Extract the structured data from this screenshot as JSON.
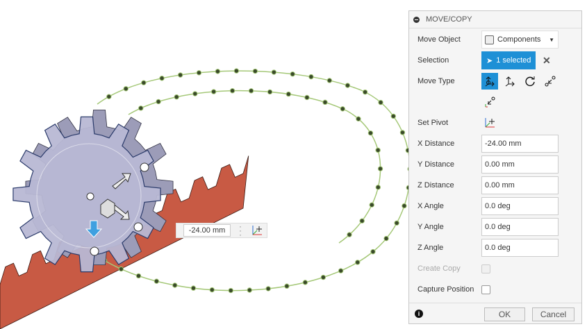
{
  "viewport": {
    "distance_input": "-24.00 mm",
    "colors": {
      "rack": "#c0503c",
      "gear": "#b3b3cf",
      "path": "#a5c878"
    }
  },
  "panel": {
    "title": "MOVE/COPY",
    "move_object": {
      "label": "Move Object",
      "value": "Components"
    },
    "selection": {
      "label": "Selection",
      "value": "1 selected"
    },
    "move_type": {
      "label": "Move Type",
      "options": [
        "free-move",
        "translate",
        "rotate",
        "point-to-point",
        "point-to-position"
      ],
      "active": "free-move"
    },
    "set_pivot": {
      "label": "Set Pivot"
    },
    "fields": [
      {
        "label": "X Distance",
        "value": "-24.00 mm"
      },
      {
        "label": "Y Distance",
        "value": "0.00 mm"
      },
      {
        "label": "Z Distance",
        "value": "0.00 mm"
      },
      {
        "label": "X Angle",
        "value": "0.0 deg"
      },
      {
        "label": "Y Angle",
        "value": "0.0 deg"
      },
      {
        "label": "Z Angle",
        "value": "0.0 deg"
      }
    ],
    "create_copy": {
      "label": "Create Copy",
      "checked": false,
      "enabled": false
    },
    "capture_position": {
      "label": "Capture Position",
      "checked": false
    },
    "ok": "OK",
    "cancel": "Cancel",
    "accent": "#1e90d6"
  }
}
